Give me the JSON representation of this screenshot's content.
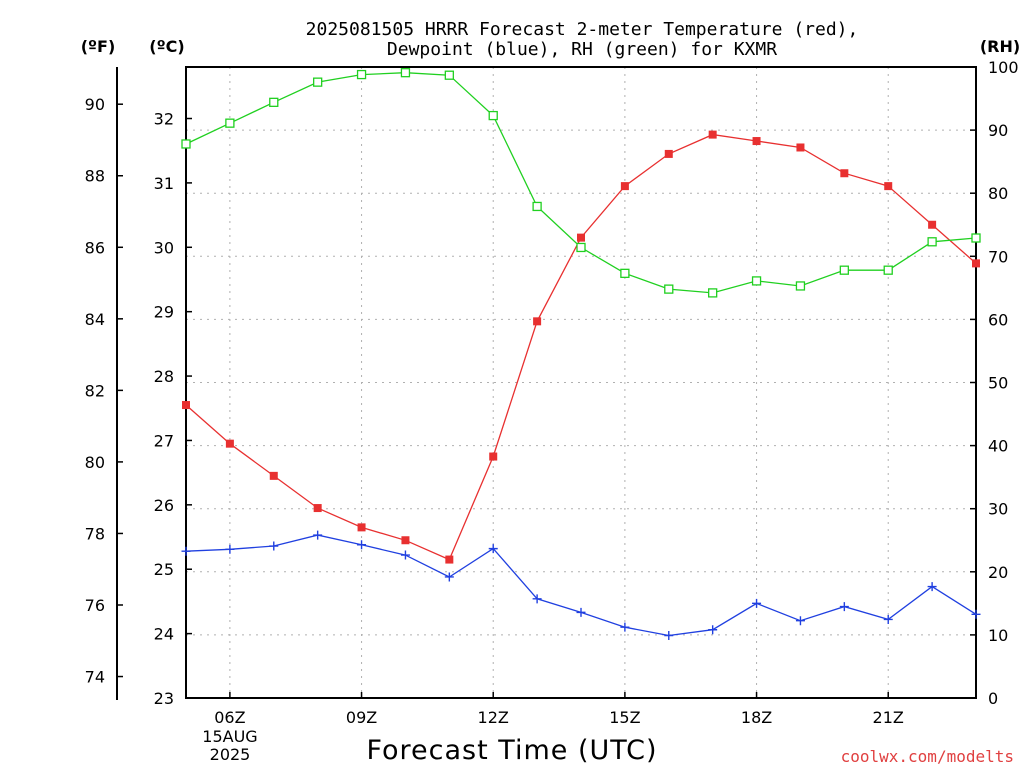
{
  "title_line1": "2025081505 HRRR Forecast 2-meter Temperature (red),",
  "title_line2": "Dewpoint (blue), RH (green) for KXMR",
  "xlabel": "Forecast Time (UTC)",
  "credit": "coolwx.com/modelts",
  "unit_f": "(ºF)",
  "unit_c": "(ºC)",
  "unit_rh": "(RH)",
  "date_line1": "15AUG",
  "date_line2": "2025",
  "colors": {
    "temperature": "#e83030",
    "dewpoint": "#2040e0",
    "rh": "#20d020",
    "grid": "#b0b0b0",
    "credit": "#e04040"
  },
  "chart_data": {
    "type": "line",
    "x": [
      "05Z",
      "06Z",
      "07Z",
      "08Z",
      "09Z",
      "10Z",
      "11Z",
      "12Z",
      "13Z",
      "14Z",
      "15Z",
      "16Z",
      "17Z",
      "18Z",
      "19Z",
      "20Z",
      "21Z",
      "22Z",
      "23Z"
    ],
    "xticks": [
      "06Z",
      "09Z",
      "12Z",
      "15Z",
      "18Z",
      "21Z"
    ],
    "xlim": [
      5,
      23
    ],
    "left_axis_f": {
      "ticks": [
        74,
        76,
        78,
        80,
        82,
        84,
        86,
        88,
        90
      ]
    },
    "left_axis_c": {
      "ylim": [
        23,
        32.8
      ],
      "ticks": [
        23,
        24,
        25,
        26,
        27,
        28,
        29,
        30,
        31,
        32
      ]
    },
    "right_axis_rh": {
      "ylim": [
        0,
        100
      ],
      "ticks": [
        0,
        10,
        20,
        30,
        40,
        50,
        60,
        70,
        80,
        90,
        100
      ]
    },
    "grid": true,
    "series": [
      {
        "key": "temperature",
        "axis": "c",
        "marker": "filled-square",
        "values": [
          27.55,
          26.95,
          26.45,
          25.95,
          25.65,
          25.45,
          25.15,
          26.75,
          28.85,
          30.15,
          30.95,
          31.45,
          31.75,
          31.65,
          31.55,
          31.15,
          30.95,
          30.35,
          29.75
        ]
      },
      {
        "key": "dewpoint",
        "axis": "c",
        "marker": "plus",
        "values": [
          25.28,
          25.31,
          25.36,
          25.53,
          25.38,
          25.22,
          24.88,
          25.32,
          24.54,
          24.33,
          24.1,
          23.97,
          24.06,
          24.47,
          24.2,
          24.42,
          24.22,
          24.73,
          24.3
        ]
      },
      {
        "key": "rh",
        "axis": "rh",
        "marker": "open-square",
        "values": [
          87.8,
          91.1,
          94.4,
          97.6,
          98.8,
          99.1,
          98.7,
          92.3,
          77.9,
          71.4,
          67.3,
          64.8,
          64.2,
          66.1,
          65.3,
          67.8,
          67.8,
          72.3,
          72.9
        ]
      }
    ]
  }
}
